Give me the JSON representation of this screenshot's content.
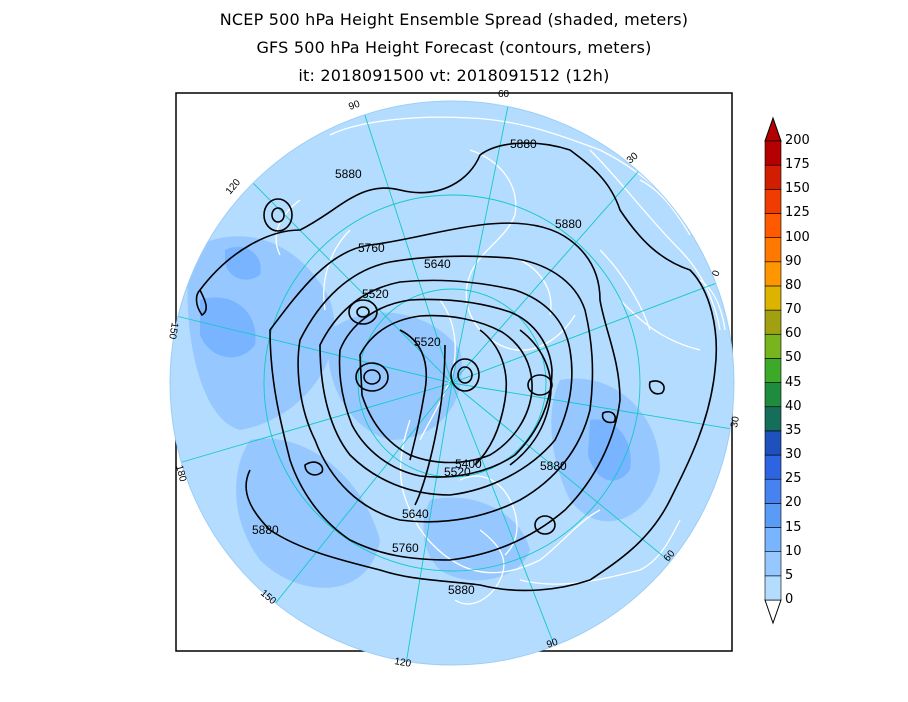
{
  "titles": {
    "line1": "NCEP 500 hPa Height Ensemble Spread (shaded, meters)",
    "line2": "GFS 500 hPa Height Forecast (contours, meters)",
    "line3": "it: 2018091500      vt: 2018091512 (12h)"
  },
  "colorbar": {
    "levels": [
      "0",
      "5",
      "10",
      "15",
      "20",
      "25",
      "30",
      "35",
      "40",
      "45",
      "50",
      "60",
      "70",
      "80",
      "90",
      "100",
      "125",
      "150",
      "175",
      "200"
    ],
    "colors": [
      "#b4dcff",
      "#96c8ff",
      "#78b4ff",
      "#5a9bf5",
      "#4682f0",
      "#2d64e1",
      "#1e50be",
      "#146e5a",
      "#1e8c3c",
      "#3caa28",
      "#78b41e",
      "#a0a010",
      "#dcb400",
      "#ff9600",
      "#ff7800",
      "#ff5a00",
      "#f03c00",
      "#d21e00",
      "#b40000"
    ]
  },
  "contour_labels": [
    "5880",
    "5880",
    "5880",
    "5760",
    "5640",
    "5520",
    "5520",
    "5400",
    "5520",
    "5880",
    "5640",
    "5760",
    "5880",
    "5880"
  ],
  "longitude_labels": [
    "60",
    "30",
    "0",
    "30",
    "60",
    "90",
    "120",
    "150",
    "180",
    "150",
    "120",
    "90"
  ]
}
